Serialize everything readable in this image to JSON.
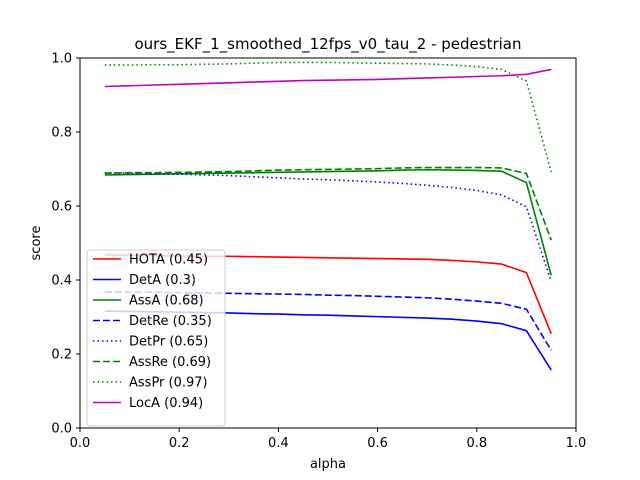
{
  "chart_data": {
    "type": "line",
    "title": "ours_EKF_1_smoothed_12fps_v0_tau_2 - pedestrian",
    "xlabel": "alpha",
    "ylabel": "score",
    "xlim": [
      0.0,
      1.0
    ],
    "ylim": [
      0.0,
      1.0
    ],
    "xticks": [
      "0.0",
      "0.2",
      "0.4",
      "0.6",
      "0.8",
      "1.0"
    ],
    "yticks": [
      "0.0",
      "0.2",
      "0.4",
      "0.6",
      "0.8",
      "1.0"
    ],
    "grid": false,
    "legend_position": "lower-left",
    "x": [
      0.05,
      0.1,
      0.15,
      0.2,
      0.25,
      0.3,
      0.35,
      0.4,
      0.45,
      0.5,
      0.55,
      0.6,
      0.65,
      0.7,
      0.75,
      0.8,
      0.85,
      0.9,
      0.95
    ],
    "series": [
      {
        "name": "HOTA (0.45)",
        "color": "#ff0000",
        "dash": "solid",
        "values": [
          0.468,
          0.467,
          0.466,
          0.465,
          0.464,
          0.464,
          0.463,
          0.462,
          0.461,
          0.46,
          0.459,
          0.458,
          0.457,
          0.456,
          0.453,
          0.449,
          0.443,
          0.42,
          0.255
        ]
      },
      {
        "name": "DetA (0.3)",
        "color": "#0000ff",
        "dash": "solid",
        "values": [
          0.316,
          0.315,
          0.314,
          0.313,
          0.312,
          0.311,
          0.309,
          0.308,
          0.306,
          0.305,
          0.303,
          0.301,
          0.299,
          0.297,
          0.294,
          0.289,
          0.282,
          0.263,
          0.157
        ]
      },
      {
        "name": "AssA (0.68)",
        "color": "#008000",
        "dash": "solid",
        "values": [
          0.684,
          0.685,
          0.686,
          0.687,
          0.688,
          0.689,
          0.69,
          0.691,
          0.692,
          0.693,
          0.694,
          0.695,
          0.697,
          0.698,
          0.697,
          0.696,
          0.694,
          0.663,
          0.413
        ]
      },
      {
        "name": "DetRe (0.35)",
        "color": "#0000ff",
        "dash": "dashed",
        "values": [
          0.368,
          0.367,
          0.367,
          0.366,
          0.365,
          0.364,
          0.363,
          0.362,
          0.361,
          0.359,
          0.358,
          0.356,
          0.354,
          0.352,
          0.348,
          0.343,
          0.337,
          0.321,
          0.21
        ]
      },
      {
        "name": "DetPr (0.65)",
        "color": "#0000ff",
        "dash": "dotted",
        "values": [
          0.689,
          0.688,
          0.687,
          0.686,
          0.684,
          0.682,
          0.679,
          0.676,
          0.673,
          0.671,
          0.668,
          0.665,
          0.661,
          0.656,
          0.65,
          0.642,
          0.63,
          0.598,
          0.396
        ]
      },
      {
        "name": "AssRe (0.69)",
        "color": "#008000",
        "dash": "dashed",
        "values": [
          0.689,
          0.69,
          0.69,
          0.691,
          0.692,
          0.693,
          0.695,
          0.697,
          0.698,
          0.699,
          0.7,
          0.701,
          0.703,
          0.704,
          0.704,
          0.704,
          0.703,
          0.688,
          0.508
        ]
      },
      {
        "name": "AssPr (0.97)",
        "color": "#008000",
        "dash": "dotted",
        "values": [
          0.981,
          0.981,
          0.982,
          0.982,
          0.983,
          0.984,
          0.986,
          0.988,
          0.988,
          0.988,
          0.987,
          0.986,
          0.985,
          0.984,
          0.981,
          0.977,
          0.969,
          0.938,
          0.692
        ]
      },
      {
        "name": "LocA (0.94)",
        "color": "#bf00bf",
        "dash": "solid",
        "values": [
          0.923,
          0.925,
          0.927,
          0.929,
          0.931,
          0.933,
          0.935,
          0.937,
          0.939,
          0.94,
          0.941,
          0.942,
          0.944,
          0.946,
          0.948,
          0.95,
          0.952,
          0.956,
          0.969
        ]
      }
    ]
  }
}
